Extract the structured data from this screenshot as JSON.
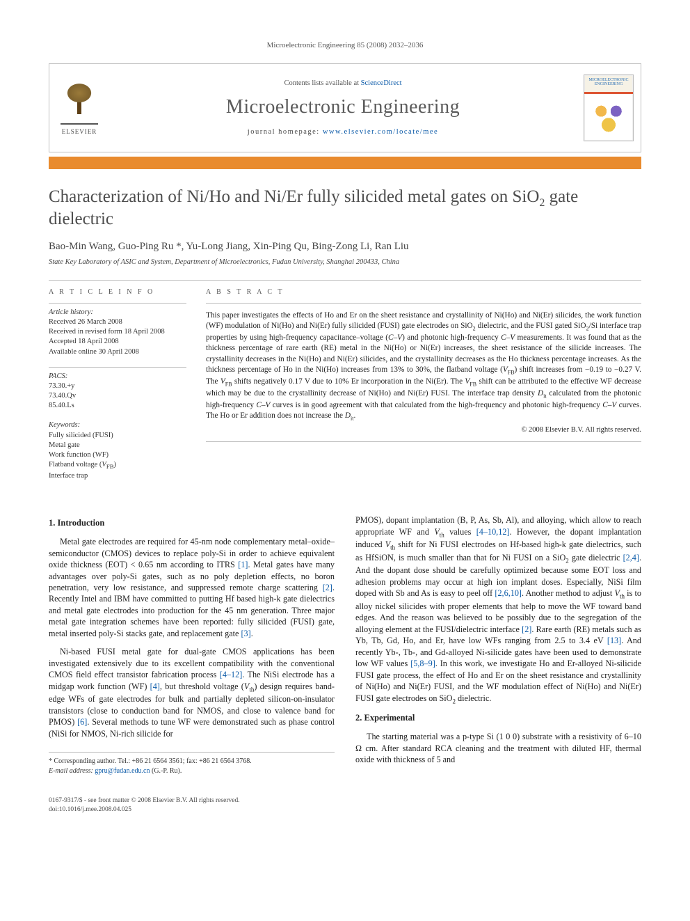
{
  "running_head": "Microelectronic Engineering 85 (2008) 2032–2036",
  "topbox": {
    "contents_line_pre": "Contents lists available at ",
    "contents_link": "ScienceDirect",
    "journal": "Microelectronic Engineering",
    "homepage_pre": "journal homepage: ",
    "homepage_url": "www.elsevier.com/locate/mee",
    "cover_title": "MICROELECTRONIC ENGINEERING",
    "elsevier": "ELSEVIER",
    "orange": "#e98b2e",
    "border": "#bfbfbf"
  },
  "title": "Characterization of Ni/Ho and Ni/Er fully silicided metal gates on SiO₂ gate dielectric",
  "authors": "Bao-Min Wang, Guo-Ping Ru *, Yu-Long Jiang, Xin-Ping Qu, Bing-Zong Li, Ran Liu",
  "affil": "State Key Laboratory of ASIC and System, Department of Microelectronics, Fudan University, Shanghai 200433, China",
  "info": {
    "heading_info": "A R T I C L E   I N F O",
    "history_label": "Article history:",
    "history": [
      "Received 26 March 2008",
      "Received in revised form 18 April 2008",
      "Accepted 18 April 2008",
      "Available online 30 April 2008"
    ],
    "pacs_label": "PACS:",
    "pacs": [
      "73.30.+y",
      "73.40.Qv",
      "85.40.Ls"
    ],
    "kw_label": "Keywords:",
    "keywords": [
      "Fully silicided (FUSI)",
      "Metal gate",
      "Work function (WF)",
      "Flatband voltage (V_FB)",
      "Interface trap"
    ]
  },
  "abstract": {
    "heading": "A B S T R A C T",
    "text": "This paper investigates the effects of Ho and Er on the sheet resistance and crystallinity of Ni(Ho) and Ni(Er) silicides, the work function (WF) modulation of Ni(Ho) and Ni(Er) fully silicided (FUSI) gate electrodes on SiO₂ dielectric, and the FUSI gated SiO₂/Si interface trap properties by using high-frequency capacitance–voltage (C–V) and photonic high-frequency C–V measurements. It was found that as the thickness percentage of rare earth (RE) metal in the Ni(Ho) or Ni(Er) increases, the sheet resistance of the silicide increases. The crystallinity decreases in the Ni(Ho) and Ni(Er) silicides, and the crystallinity decreases as the Ho thickness percentage increases. As the thickness percentage of Ho in the Ni(Ho) increases from 13% to 30%, the flatband voltage (V_FB) shift increases from −0.19 to −0.27 V. The V_FB shifts negatively 0.17 V due to 10% Er incorporation in the Ni(Er). The V_FB shift can be attributed to the effective WF decrease which may be due to the crystallinity decrease of Ni(Ho) and Ni(Er) FUSI. The interface trap density D_it calculated from the photonic high-frequency C–V curves is in good agreement with that calculated from the high-frequency and photonic high-frequency C–V curves. The Ho or Er addition does not increase the D_it.",
    "copyright": "© 2008 Elsevier B.V. All rights reserved."
  },
  "body": {
    "sec1_heading": "1. Introduction",
    "sec1_p1": "Metal gate electrodes are required for 45-nm node complementary metal–oxide–semiconductor (CMOS) devices to replace poly-Si in order to achieve equivalent oxide thickness (EOT) < 0.65 nm according to ITRS [1]. Metal gates have many advantages over poly-Si gates, such as no poly depletion effects, no boron penetration, very low resistance, and suppressed remote charge scattering [2]. Recently Intel and IBM have committed to putting Hf based high-k gate dielectrics and metal gate electrodes into production for the 45 nm generation. Three major metal gate integration schemes have been reported: fully silicided (FUSI) gate, metal inserted poly-Si stacks gate, and replacement gate [3].",
    "sec1_p2": "Ni-based FUSI metal gate for dual-gate CMOS applications has been investigated extensively due to its excellent compatibility with the conventional CMOS field effect transistor fabrication process [4–12]. The NiSi electrode has a midgap work function (WF) [4], but threshold voltage (V_th) design requires band-edge WFs of gate electrodes for bulk and partially depleted silicon-on-insulator transistors (close to conduction band for NMOS, and close to valence band for PMOS) [6]. Several methods to tune WF were demonstrated such as phase control (NiSi for NMOS, Ni-rich silicide for",
    "sec1_p3": "PMOS), dopant implantation (B, P, As, Sb, Al), and alloying, which allow to reach appropriate WF and V_th values [4–10,12]. However, the dopant implantation induced V_th shift for Ni FUSI electrodes on Hf-based high-k gate dielectrics, such as HfSiON, is much smaller than that for Ni FUSI on a SiO₂ gate dielectric [2,4]. And the dopant dose should be carefully optimized because some EOT loss and adhesion problems may occur at high ion implant doses. Especially, NiSi film doped with Sb and As is easy to peel off [2,6,10]. Another method to adjust V_th is to alloy nickel silicides with proper elements that help to move the WF toward band edges. And the reason was believed to be possibly due to the segregation of the alloying element at the FUSI/dielectric interface [2]. Rare earth (RE) metals such as Yb, Tb, Gd, Ho, and Er, have low WFs ranging from 2.5 to 3.4 eV [13]. And recently Yb-, Tb-, and Gd-alloyed Ni-silicide gates have been used to demonstrate low WF values [5,8–9]. In this work, we investigate Ho and Er-alloyed Ni-silicide FUSI gate process, the effect of Ho and Er on the sheet resistance and crystallinity of Ni(Ho) and Ni(Er) FUSI, and the WF modulation effect of Ni(Ho) and Ni(Er) FUSI gate electrodes on SiO₂ dielectric.",
    "sec2_heading": "2. Experimental",
    "sec2_p1": "The starting material was a p-type Si (1 0 0) substrate with a resistivity of 6–10 Ω cm. After standard RCA cleaning and the treatment with diluted HF, thermal oxide with thickness of 5 and"
  },
  "footnote": {
    "corr": "* Corresponding author. Tel.: +86 21 6564 3561; fax: +86 21 6564 3768.",
    "email_label": "E-mail address:",
    "email": "gpru@fudan.edu.cn",
    "email_tail": "(G.-P. Ru)."
  },
  "bottom": {
    "line1": "0167-9317/$ - see front matter © 2008 Elsevier B.V. All rights reserved.",
    "line2": "doi:10.1016/j.mee.2008.04.025"
  },
  "refs": [
    "[1]",
    "[2]",
    "[3]",
    "[4]",
    "[4–12]",
    "[6]",
    "[4–10,12]",
    "[2,4]",
    "[2,6,10]",
    "[13]",
    "[5,8–9]"
  ],
  "colors": {
    "link": "#0b5aa8",
    "text": "#222222",
    "heading_gray": "#555555",
    "rule": "#bbbbbb"
  }
}
